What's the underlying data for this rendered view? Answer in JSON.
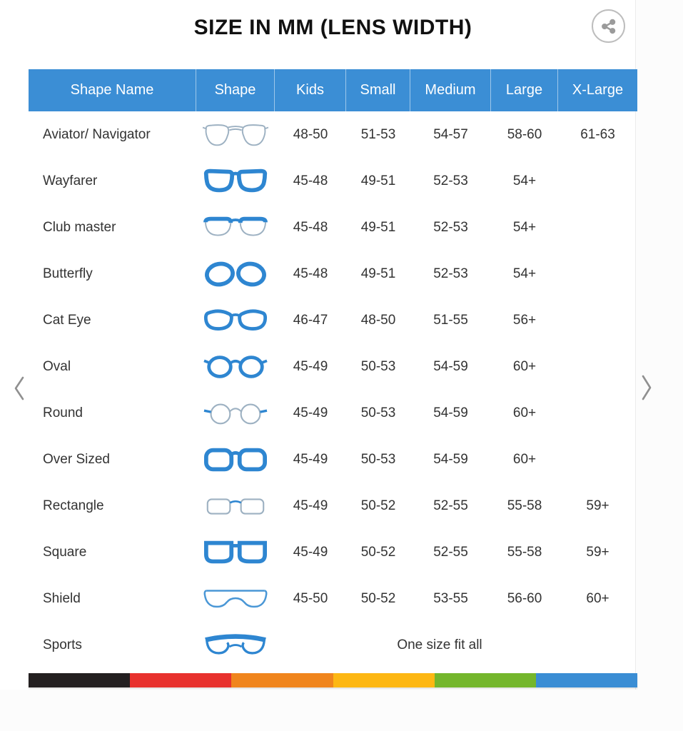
{
  "title": "SIZE IN MM (LENS WIDTH)",
  "share": {
    "icon": "share-icon"
  },
  "nav": {
    "prev_icon": "chevron-left-icon",
    "next_icon": "chevron-right-icon"
  },
  "table": {
    "headers": [
      "Shape Name",
      "Shape",
      "Kids",
      "Small",
      "Medium",
      "Large",
      "X-Large"
    ],
    "rows": [
      {
        "name": "Aviator/ Navigator",
        "icon": "aviator-glasses-icon",
        "sizes": [
          "48-50",
          "51-53",
          "54-57",
          "58-60",
          "61-63"
        ]
      },
      {
        "name": "Wayfarer",
        "icon": "wayfarer-glasses-icon",
        "sizes": [
          "45-48",
          "49-51",
          "52-53",
          "54+",
          ""
        ]
      },
      {
        "name": "Club master",
        "icon": "clubmaster-glasses-icon",
        "sizes": [
          "45-48",
          "49-51",
          "52-53",
          "54+",
          ""
        ]
      },
      {
        "name": "Butterfly",
        "icon": "butterfly-glasses-icon",
        "sizes": [
          "45-48",
          "49-51",
          "52-53",
          "54+",
          ""
        ]
      },
      {
        "name": "Cat Eye",
        "icon": "cateye-glasses-icon",
        "sizes": [
          "46-47",
          "48-50",
          "51-55",
          "56+",
          ""
        ]
      },
      {
        "name": "Oval",
        "icon": "oval-glasses-icon",
        "sizes": [
          "45-49",
          "50-53",
          "54-59",
          "60+",
          ""
        ]
      },
      {
        "name": "Round",
        "icon": "round-glasses-icon",
        "sizes": [
          "45-49",
          "50-53",
          "54-59",
          "60+",
          ""
        ]
      },
      {
        "name": "Over Sized",
        "icon": "oversized-glasses-icon",
        "sizes": [
          "45-49",
          "50-53",
          "54-59",
          "60+",
          ""
        ]
      },
      {
        "name": "Rectangle",
        "icon": "rectangle-glasses-icon",
        "sizes": [
          "45-49",
          "50-52",
          "52-55",
          "55-58",
          "59+"
        ]
      },
      {
        "name": "Square",
        "icon": "square-glasses-icon",
        "sizes": [
          "45-49",
          "50-52",
          "52-55",
          "55-58",
          "59+"
        ]
      },
      {
        "name": "Shield",
        "icon": "shield-glasses-icon",
        "sizes": [
          "45-50",
          "50-52",
          "53-55",
          "56-60",
          "60+"
        ]
      },
      {
        "name": "Sports",
        "icon": "sports-glasses-icon",
        "span_text": "One size fit all"
      }
    ]
  },
  "footer_stripe": {
    "colors": [
      "#231f20",
      "#e8312d",
      "#f0851d",
      "#fdb713",
      "#74b62c",
      "#3a8dd4"
    ]
  },
  "colors": {
    "header_bg": "#3b8ed5",
    "header_text": "#ffffff",
    "row_text": "#333333",
    "icon_blue": "#2e86d1",
    "icon_gray": "#9db1c2",
    "arrow_gray": "#909090"
  }
}
